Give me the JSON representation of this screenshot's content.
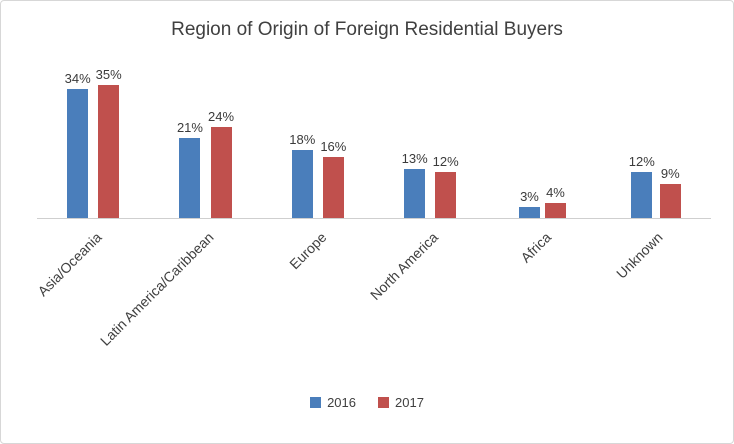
{
  "chart_data": {
    "type": "bar",
    "title": "Region of Origin of Foreign Residential Buyers",
    "categories": [
      "Asia/Oceania",
      "Latin America/Caribbean",
      "Europe",
      "North America",
      "Africa",
      "Unknown"
    ],
    "series": [
      {
        "name": "2016",
        "color": "#4a7ebb",
        "values": [
          34,
          21,
          18,
          13,
          3,
          12
        ]
      },
      {
        "name": "2017",
        "color": "#c0504d",
        "values": [
          35,
          24,
          16,
          12,
          4,
          9
        ]
      }
    ],
    "value_suffix": "%",
    "ylim": [
      0,
      40
    ],
    "grid": false,
    "data_labels": true,
    "legend_position": "bottom",
    "xlabel": "",
    "ylabel": ""
  }
}
